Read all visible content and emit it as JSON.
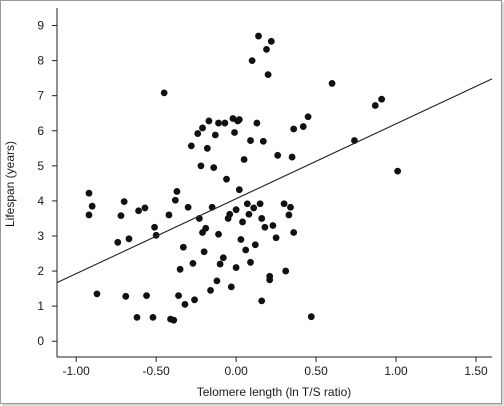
{
  "chart_data": {
    "type": "scatter",
    "title": "",
    "xlabel": "Telomere length (ln T/S ratio)",
    "ylabel": "Lifespan (years)",
    "xlim": [
      -1.12,
      1.6
    ],
    "ylim": [
      -0.45,
      9.5
    ],
    "xticks": [
      -1.0,
      -0.5,
      0.0,
      0.5,
      1.0,
      1.5
    ],
    "xtick_labels": [
      "-1.00",
      "-0.50",
      "0.00",
      "0.50",
      "1.00",
      "1.50"
    ],
    "yticks": [
      0,
      1,
      2,
      3,
      4,
      5,
      6,
      7,
      8,
      9
    ],
    "ytick_labels": [
      "0",
      "1",
      "2",
      "3",
      "4",
      "5",
      "6",
      "7",
      "8",
      "9"
    ],
    "grid": false,
    "legend": "none",
    "trendline": {
      "x": [
        -1.12,
        1.6
      ],
      "y": [
        1.67,
        7.48
      ]
    },
    "points": [
      {
        "x": -0.92,
        "y": 4.22
      },
      {
        "x": -0.92,
        "y": 3.6
      },
      {
        "x": -0.9,
        "y": 3.85
      },
      {
        "x": -0.87,
        "y": 1.35
      },
      {
        "x": -0.74,
        "y": 2.82
      },
      {
        "x": -0.72,
        "y": 3.58
      },
      {
        "x": -0.7,
        "y": 3.98
      },
      {
        "x": -0.69,
        "y": 1.28
      },
      {
        "x": -0.67,
        "y": 2.92
      },
      {
        "x": -0.62,
        "y": 0.68
      },
      {
        "x": -0.61,
        "y": 3.72
      },
      {
        "x": -0.57,
        "y": 3.8
      },
      {
        "x": -0.56,
        "y": 1.3
      },
      {
        "x": -0.52,
        "y": 0.68
      },
      {
        "x": -0.51,
        "y": 3.25
      },
      {
        "x": -0.5,
        "y": 3.02
      },
      {
        "x": -0.45,
        "y": 7.08
      },
      {
        "x": -0.42,
        "y": 3.6
      },
      {
        "x": -0.41,
        "y": 0.63
      },
      {
        "x": -0.39,
        "y": 0.6
      },
      {
        "x": -0.38,
        "y": 4.02
      },
      {
        "x": -0.37,
        "y": 4.27
      },
      {
        "x": -0.36,
        "y": 1.3
      },
      {
        "x": -0.35,
        "y": 2.05
      },
      {
        "x": -0.33,
        "y": 2.68
      },
      {
        "x": -0.32,
        "y": 1.05
      },
      {
        "x": -0.3,
        "y": 3.82
      },
      {
        "x": -0.28,
        "y": 5.57
      },
      {
        "x": -0.27,
        "y": 2.22
      },
      {
        "x": -0.26,
        "y": 1.18
      },
      {
        "x": -0.24,
        "y": 5.92
      },
      {
        "x": -0.23,
        "y": 3.5
      },
      {
        "x": -0.22,
        "y": 5.0
      },
      {
        "x": -0.21,
        "y": 6.08
      },
      {
        "x": -0.21,
        "y": 3.1
      },
      {
        "x": -0.2,
        "y": 2.55
      },
      {
        "x": -0.19,
        "y": 3.22
      },
      {
        "x": -0.18,
        "y": 5.5
      },
      {
        "x": -0.17,
        "y": 6.28
      },
      {
        "x": -0.16,
        "y": 1.45
      },
      {
        "x": -0.15,
        "y": 3.82
      },
      {
        "x": -0.14,
        "y": 4.95
      },
      {
        "x": -0.13,
        "y": 5.88
      },
      {
        "x": -0.12,
        "y": 1.72
      },
      {
        "x": -0.11,
        "y": 6.22
      },
      {
        "x": -0.11,
        "y": 3.05
      },
      {
        "x": -0.1,
        "y": 2.2
      },
      {
        "x": -0.08,
        "y": 2.38
      },
      {
        "x": -0.07,
        "y": 6.22
      },
      {
        "x": -0.06,
        "y": 4.62
      },
      {
        "x": -0.05,
        "y": 3.5
      },
      {
        "x": -0.04,
        "y": 3.62
      },
      {
        "x": -0.03,
        "y": 1.55
      },
      {
        "x": -0.02,
        "y": 6.35
      },
      {
        "x": -0.01,
        "y": 5.95
      },
      {
        "x": 0.0,
        "y": 3.75
      },
      {
        "x": 0.0,
        "y": 2.1
      },
      {
        "x": 0.01,
        "y": 6.28
      },
      {
        "x": 0.02,
        "y": 6.32
      },
      {
        "x": 0.02,
        "y": 4.32
      },
      {
        "x": 0.03,
        "y": 2.9
      },
      {
        "x": 0.04,
        "y": 3.4
      },
      {
        "x": 0.05,
        "y": 5.18
      },
      {
        "x": 0.06,
        "y": 2.6
      },
      {
        "x": 0.07,
        "y": 3.92
      },
      {
        "x": 0.08,
        "y": 3.62
      },
      {
        "x": 0.09,
        "y": 5.72
      },
      {
        "x": 0.09,
        "y": 2.25
      },
      {
        "x": 0.1,
        "y": 8.0
      },
      {
        "x": 0.11,
        "y": 3.8
      },
      {
        "x": 0.12,
        "y": 2.75
      },
      {
        "x": 0.13,
        "y": 6.22
      },
      {
        "x": 0.14,
        "y": 8.7
      },
      {
        "x": 0.15,
        "y": 3.92
      },
      {
        "x": 0.16,
        "y": 3.5
      },
      {
        "x": 0.16,
        "y": 1.15
      },
      {
        "x": 0.17,
        "y": 5.7
      },
      {
        "x": 0.18,
        "y": 3.25
      },
      {
        "x": 0.19,
        "y": 8.32
      },
      {
        "x": 0.2,
        "y": 7.6
      },
      {
        "x": 0.21,
        "y": 1.85
      },
      {
        "x": 0.21,
        "y": 1.75
      },
      {
        "x": 0.22,
        "y": 8.55
      },
      {
        "x": 0.23,
        "y": 3.3
      },
      {
        "x": 0.25,
        "y": 2.95
      },
      {
        "x": 0.26,
        "y": 5.3
      },
      {
        "x": 0.3,
        "y": 3.92
      },
      {
        "x": 0.31,
        "y": 2.0
      },
      {
        "x": 0.33,
        "y": 3.6
      },
      {
        "x": 0.34,
        "y": 3.82
      },
      {
        "x": 0.35,
        "y": 5.25
      },
      {
        "x": 0.36,
        "y": 6.05
      },
      {
        "x": 0.36,
        "y": 3.1
      },
      {
        "x": 0.42,
        "y": 6.12
      },
      {
        "x": 0.45,
        "y": 6.4
      },
      {
        "x": 0.47,
        "y": 0.7
      },
      {
        "x": 0.6,
        "y": 7.35
      },
      {
        "x": 0.74,
        "y": 5.72
      },
      {
        "x": 0.87,
        "y": 6.72
      },
      {
        "x": 0.91,
        "y": 6.9
      },
      {
        "x": 1.01,
        "y": 4.85
      }
    ]
  }
}
